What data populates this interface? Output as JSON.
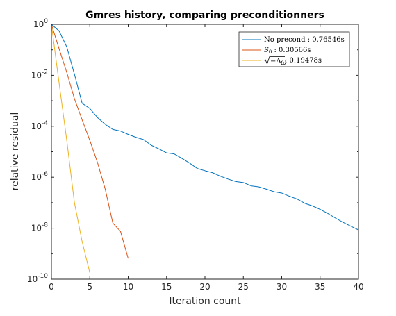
{
  "chart_data": {
    "type": "line",
    "title": "Gmres history, comparing preconditionners",
    "xlabel": "Iteration count",
    "ylabel": "relative residual",
    "xlim": [
      0,
      40
    ],
    "ylim_log10": [
      -10,
      0
    ],
    "yscale": "log",
    "grid": false,
    "legend_placement": "top-right",
    "xticks": [
      "0",
      "5",
      "10",
      "15",
      "20",
      "25",
      "30",
      "35",
      "40"
    ],
    "yticks": [
      {
        "base": "10",
        "exp": "0"
      },
      {
        "base": "10",
        "exp": "-2"
      },
      {
        "base": "10",
        "exp": "-4"
      },
      {
        "base": "10",
        "exp": "-6"
      },
      {
        "base": "10",
        "exp": "-8"
      },
      {
        "base": "10",
        "exp": "-10"
      }
    ],
    "series": [
      {
        "name": "No precond : 0.76546s",
        "color": "#0072bd",
        "x": [
          0,
          1,
          2,
          3,
          4,
          5,
          6,
          7,
          8,
          9,
          10,
          11,
          12,
          13,
          14,
          15,
          16,
          17,
          18,
          19,
          20,
          21,
          22,
          23,
          24,
          25,
          26,
          27,
          28,
          29,
          30,
          31,
          32,
          33,
          34,
          35,
          36,
          37,
          38,
          39,
          40
        ],
        "y": [
          1,
          0.55,
          0.13,
          0.011,
          0.0008,
          0.0005,
          0.00022,
          0.00012,
          7.5e-05,
          6.5e-05,
          4.8e-05,
          3.7e-05,
          3e-05,
          1.8e-05,
          1.3e-05,
          9e-06,
          8.2e-06,
          5.5e-06,
          3.6e-06,
          2.2e-06,
          1.8e-06,
          1.5e-06,
          1.1e-06,
          8.5e-07,
          6.8e-07,
          6.2e-07,
          4.6e-07,
          4.2e-07,
          3.4e-07,
          2.7e-07,
          2.4e-07,
          1.8e-07,
          1.4e-07,
          9.5e-08,
          7.5e-08,
          5.5e-08,
          3.8e-08,
          2.5e-08,
          1.7e-08,
          1.2e-08,
          8.5e-09
        ]
      },
      {
        "name": "S_0 : 0.30566s",
        "label_main": "S",
        "label_sub": "0",
        "label_rest": " :  0.30566s",
        "color": "#d95319",
        "x": [
          0,
          1,
          2,
          3,
          4,
          5,
          6,
          7,
          8,
          9,
          10
        ],
        "y": [
          1,
          0.11,
          0.013,
          0.0012,
          0.00018,
          2.8e-05,
          3.8e-06,
          3.5e-07,
          1.6e-08,
          7.5e-09,
          6.5e-10
        ]
      },
      {
        "name": "sqrt(-Δ_ω) : 0.19478s",
        "label_rest": " :  0.19478s",
        "color": "#edb120",
        "x": [
          0,
          1,
          2,
          3,
          4,
          5
        ],
        "y": [
          1,
          0.005,
          2.8e-05,
          1e-07,
          3e-09,
          1.8e-10
        ]
      }
    ]
  }
}
